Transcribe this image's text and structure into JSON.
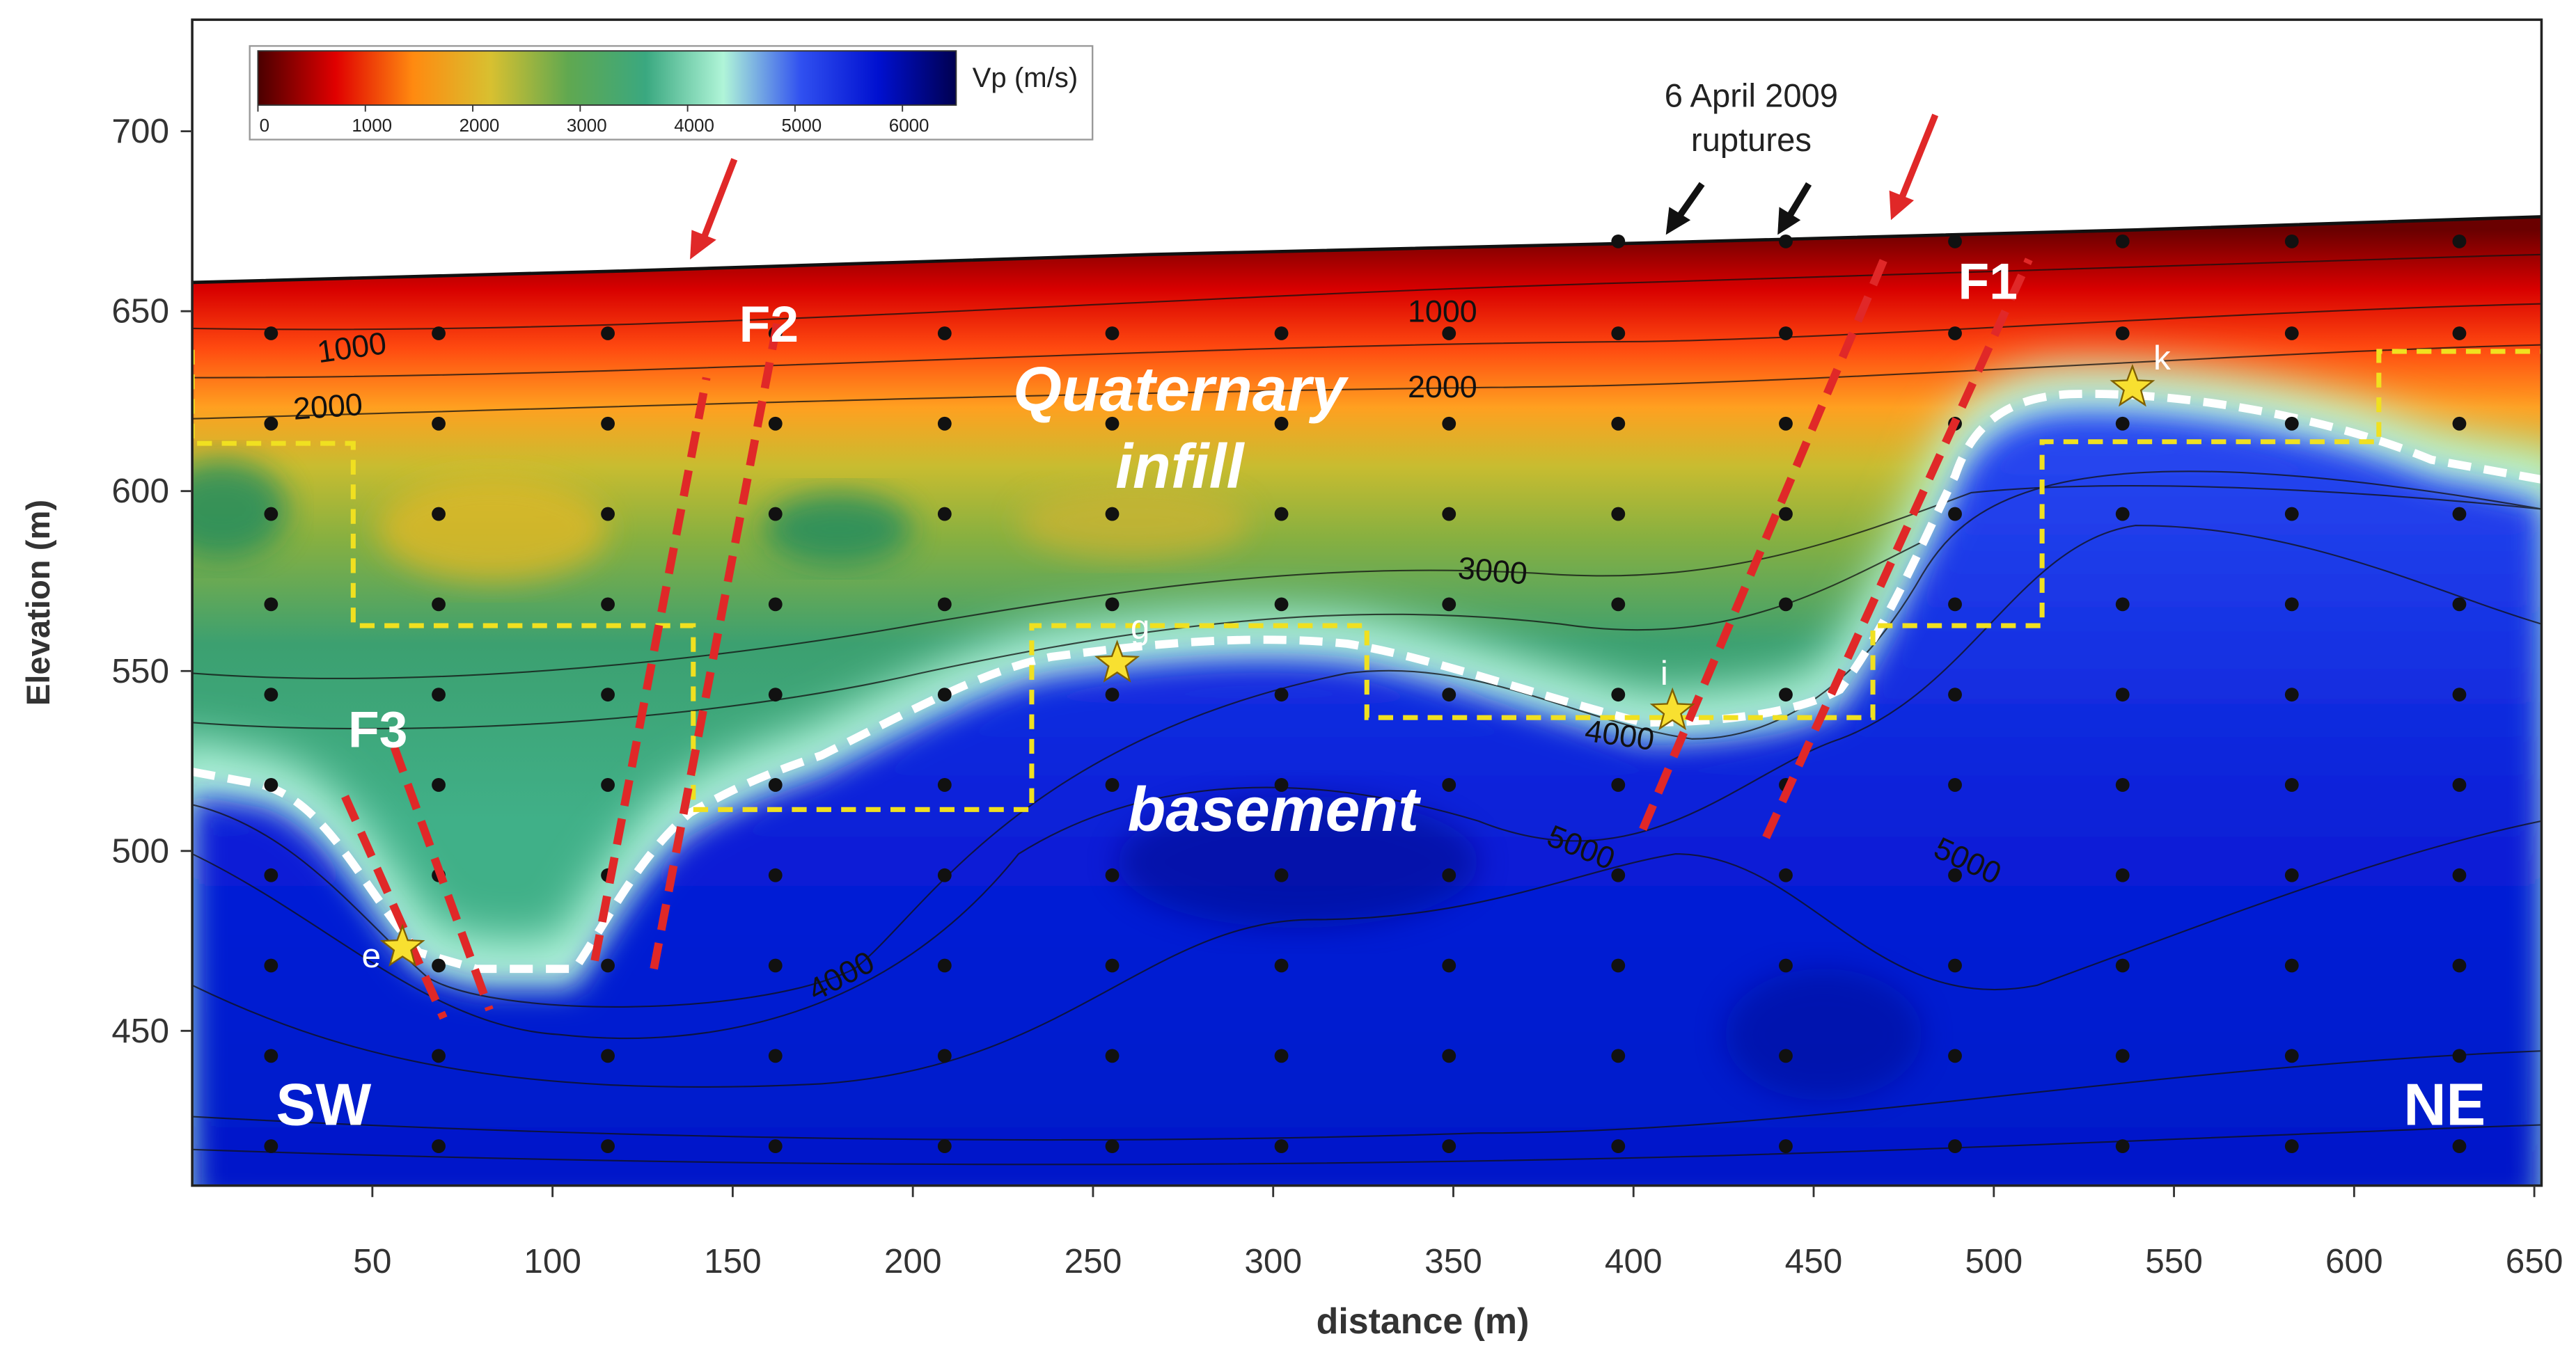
{
  "chart_data": {
    "type": "contour",
    "x_label": "distance (m)",
    "y_label": "Elevation (m)",
    "xlim": [
      0,
      652
    ],
    "ylim": [
      407,
      731
    ],
    "xticks": [
      50,
      100,
      150,
      200,
      250,
      300,
      350,
      400,
      450,
      500,
      550,
      600,
      650
    ],
    "yticks": [
      450,
      500,
      550,
      600,
      650,
      700
    ],
    "colorbar": {
      "label": "Vp (m/s)",
      "lim": [
        0,
        6500
      ],
      "ticks": [
        0,
        1000,
        2000,
        3000,
        4000,
        5000,
        6000
      ],
      "colors": [
        "#4a0000",
        "#e00000",
        "#ff8a10",
        "#d8c030",
        "#60a850",
        "#3aa880",
        "#b0f5d8",
        "#3050f0",
        "#0010d0",
        "#000050"
      ]
    },
    "contour_labels": [
      1000,
      2000,
      1000,
      2000,
      3000,
      4000,
      4000,
      5000,
      5000
    ],
    "annotations": {
      "quaternary": "Quaternary",
      "infill": "infill",
      "basement": "basement",
      "sw": "SW",
      "ne": "NE",
      "faults": [
        "F1",
        "F2",
        "F3"
      ],
      "stars": [
        "e",
        "g",
        "i",
        "k"
      ],
      "ruptures": [
        "6 April 2009",
        "ruptures"
      ]
    }
  }
}
